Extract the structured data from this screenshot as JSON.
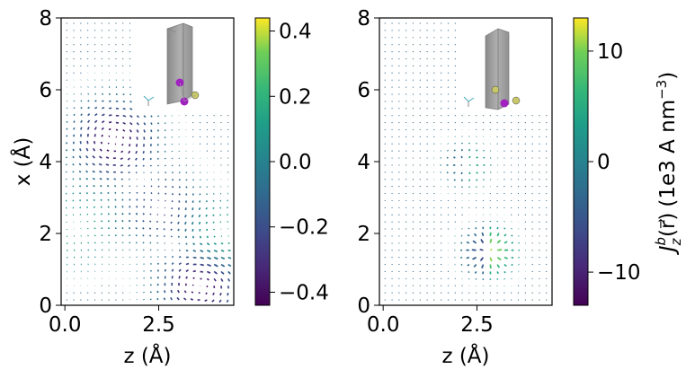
{
  "chart_data": [
    {
      "type": "quiver",
      "panel": "left",
      "xlabel": "z (Å)",
      "ylabel": "x (Å)",
      "xlim": [
        -0.1,
        4.5
      ],
      "ylim": [
        0,
        8
      ],
      "xticks": [
        0.0,
        2.5
      ],
      "xtick_labels": [
        "0.0",
        "2.5"
      ],
      "yticks": [
        0,
        2,
        4,
        6,
        8
      ],
      "ytick_labels": [
        "0",
        "2",
        "4",
        "6",
        "8"
      ],
      "colorbar": {
        "range": [
          -0.44,
          0.44
        ],
        "ticks": [
          0.4,
          0.2,
          0.0,
          -0.2,
          -0.4
        ],
        "tick_labels": [
          "0.4",
          "0.2",
          "0.0",
          "−0.2",
          "−0.4"
        ],
        "label": ""
      },
      "current_vortices": [
        {
          "z": 1.3,
          "x": 4.6,
          "strength": -0.42
        },
        {
          "z": 3.6,
          "x": 0.6,
          "strength": -0.42
        },
        {
          "z": 2.6,
          "x": 2.7,
          "strength": -0.25
        },
        {
          "z": 0.3,
          "x": 2.2,
          "strength": 0.15
        },
        {
          "z": 4.1,
          "x": 1.9,
          "strength": 0.2
        }
      ],
      "inset": {
        "atoms": [
          {
            "color": "#a020c0"
          },
          {
            "color": "#c8c86a"
          },
          {
            "color": "#a020c0"
          }
        ]
      }
    },
    {
      "type": "quiver",
      "panel": "right",
      "xlabel": "z (Å)",
      "ylabel": "",
      "xlim": [
        -0.1,
        4.5
      ],
      "ylim": [
        0,
        8
      ],
      "xticks": [
        0.0,
        2.5
      ],
      "xtick_labels": [
        "0.0",
        "2.5"
      ],
      "yticks": [
        0,
        2,
        4,
        6,
        8
      ],
      "ytick_labels": [
        "0",
        "2",
        "4",
        "6",
        "8"
      ],
      "colorbar": {
        "range": [
          -13,
          13
        ],
        "ticks": [
          10,
          0,
          -10
        ],
        "tick_labels": [
          "10",
          "0",
          "−10"
        ],
        "label": "J_z^b(r) (1e3 A nm^-3)",
        "label_parts": {
          "main": "J",
          "sub": "z",
          "sup": "b",
          "arg": "(r⃗)",
          "unit": "(1e3 A nm",
          "exp": "−3",
          "close": ")"
        }
      },
      "current_sources": [
        {
          "z": 2.2,
          "x": 3.9,
          "strength": 6
        },
        {
          "z": 2.8,
          "x": 1.5,
          "strength": 13
        }
      ],
      "inset": {
        "atoms": [
          {
            "color": "#c8c86a"
          },
          {
            "color": "#c8c86a"
          },
          {
            "color": "#a020c0"
          }
        ]
      }
    }
  ]
}
